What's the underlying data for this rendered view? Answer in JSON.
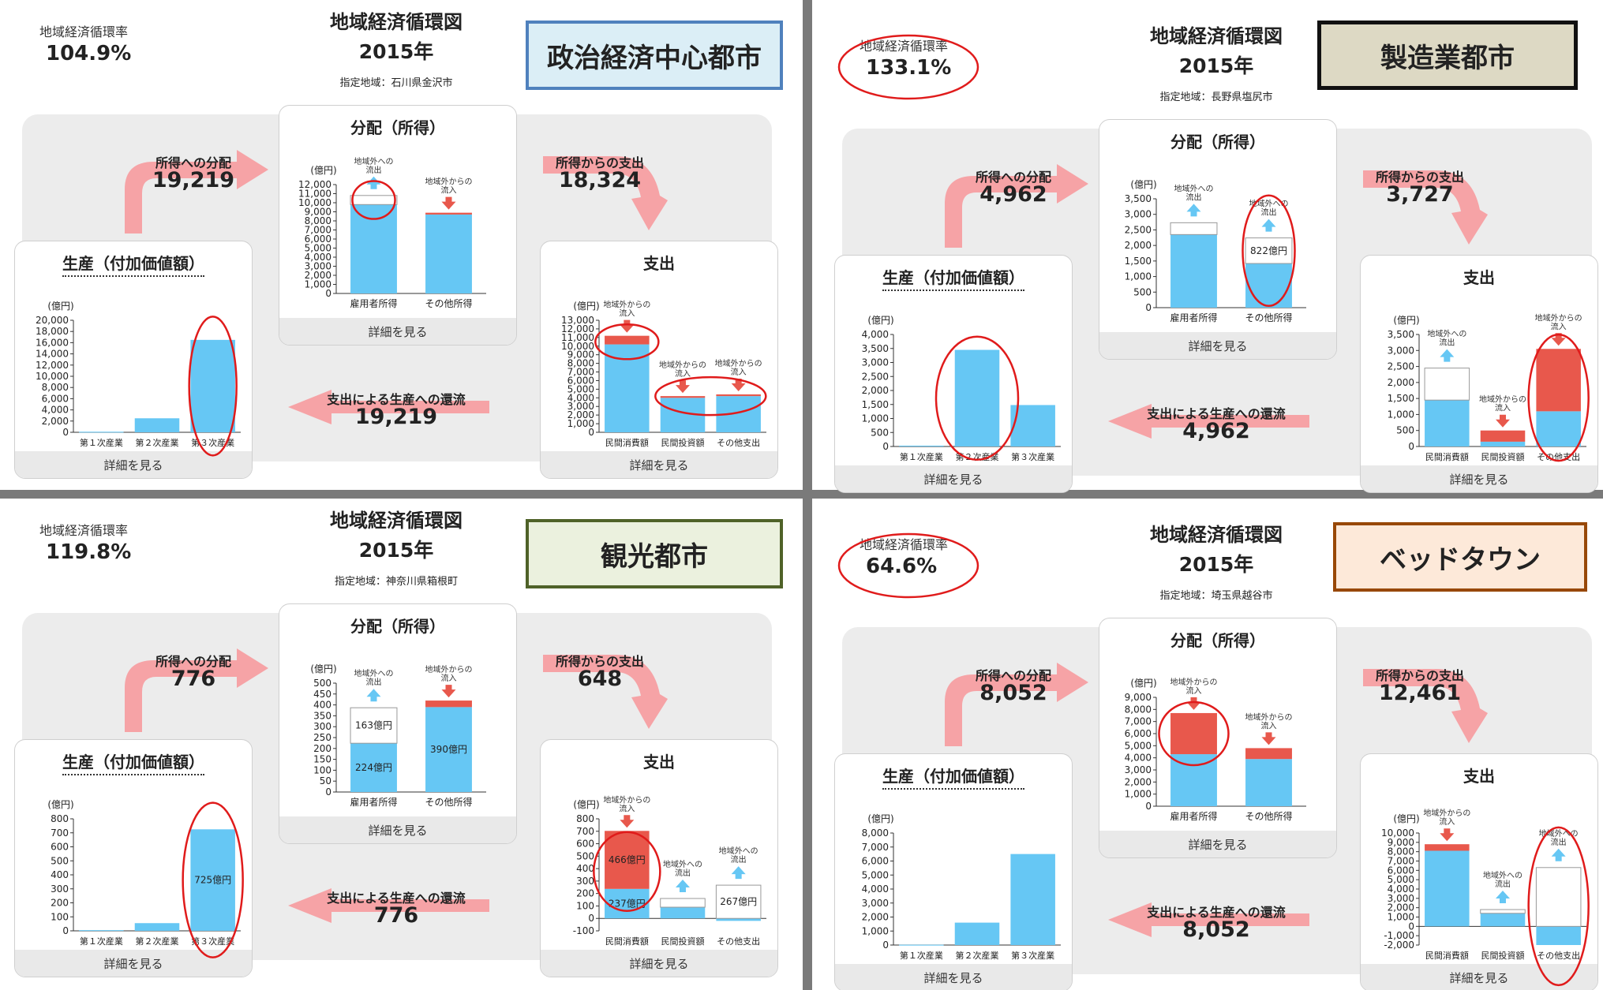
{
  "common": {
    "rate_label": "地域経済循環率",
    "title": "地域経済循環図",
    "year": "2015年",
    "dist_title": "分配（所得）",
    "prod_title": "生産（付加価値額）",
    "exp_title": "支出",
    "detail": "詳細を見る",
    "flow_to_income": "所得への分配",
    "flow_from_income": "所得からの支出",
    "flow_return": "支出による生産への還流",
    "unit": "(億円)",
    "dist_categories": [
      "雇用者所得",
      "その他所得"
    ],
    "prod_categories": [
      "第１次産業",
      "第２次産業",
      "第３次産業"
    ],
    "exp_categories": [
      "民間消費額",
      "民間投資額",
      "その他支出"
    ],
    "note_out": "地域外への流出",
    "note_in": "地域外からの流入",
    "colors": {
      "bar": "#66c7f4",
      "red": "#e8584c",
      "arrow": "#f6a3a6",
      "circle": "#e01b1b",
      "panel": "#ececec"
    }
  },
  "quadrants": [
    {
      "rate": "104.9%",
      "region": "指定地域：石川県金沢市",
      "type": "政治経済中心都市",
      "flows": {
        "to_income": "19,219",
        "from_income": "18,324",
        "return": "19,219"
      },
      "chart_data": [
        {
          "type": "bar",
          "title": "分配（所得）",
          "ylabel": "(億円)",
          "ylim": [
            0,
            12000
          ],
          "yticks": [
            "0",
            "1,000",
            "2,000",
            "3,000",
            "4,000",
            "5,000",
            "6,000",
            "7,000",
            "8,000",
            "9,000",
            "10,000",
            "11,000",
            "12,000"
          ],
          "categories": [
            "雇用者所得",
            "その他所得"
          ],
          "values": [
            9800,
            8700
          ],
          "flow": [
            1000,
            -200
          ],
          "notes": [
            "地域外への流出",
            "地域外からの流入"
          ]
        },
        {
          "type": "bar",
          "title": "生産（付加価値額）",
          "ylabel": "(億円)",
          "ylim": [
            0,
            20000
          ],
          "yticks": [
            "0",
            "2,000",
            "4,000",
            "6,000",
            "8,000",
            "10,000",
            "12,000",
            "14,000",
            "16,000",
            "18,000",
            "20,000"
          ],
          "categories": [
            "第１次産業",
            "第２次産業",
            "第３次産業"
          ],
          "values": [
            100,
            2500,
            16500
          ]
        },
        {
          "type": "bar",
          "title": "支出",
          "ylabel": "(億円)",
          "ylim": [
            0,
            13000
          ],
          "yticks": [
            "0",
            "1,000",
            "2,000",
            "3,000",
            "4,000",
            "5,000",
            "6,000",
            "7,000",
            "8,000",
            "9,000",
            "10,000",
            "11,000",
            "12,000",
            "13,000"
          ],
          "categories": [
            "民間消費額",
            "民間投資額",
            "その他支出"
          ],
          "values": [
            10200,
            4000,
            4200
          ],
          "flow": [
            -1000,
            -200,
            -200
          ],
          "notes": [
            "地域外からの流入",
            "地域外からの流入",
            "地域外からの流入"
          ]
        }
      ]
    },
    {
      "rate": "133.1%",
      "region": "指定地域：長野県塩尻市",
      "type": "製造業都市",
      "flows": {
        "to_income": "4,962",
        "from_income": "3,727",
        "return": "4,962"
      },
      "chart_data": [
        {
          "type": "bar",
          "title": "分配（所得）",
          "ylabel": "(億円)",
          "ylim": [
            0,
            3500
          ],
          "yticks": [
            "0",
            "500",
            "1,000",
            "1,500",
            "2,000",
            "2,500",
            "3,000",
            "3,500"
          ],
          "categories": [
            "雇用者所得",
            "その他所得"
          ],
          "values": [
            2350,
            1420
          ],
          "flow": [
            380,
            822
          ],
          "flow_labels": [
            "",
            "822億円"
          ],
          "notes": [
            "地域外への流出",
            "地域外への流出"
          ]
        },
        {
          "type": "bar",
          "title": "生産（付加価値額）",
          "ylabel": "(億円)",
          "ylim": [
            0,
            4000
          ],
          "yticks": [
            "0",
            "500",
            "1,000",
            "1,500",
            "2,000",
            "2,500",
            "3,000",
            "3,500",
            "4,000"
          ],
          "categories": [
            "第１次産業",
            "第２次産業",
            "第３次産業"
          ],
          "values": [
            30,
            3450,
            1480
          ]
        },
        {
          "type": "bar",
          "title": "支出",
          "ylabel": "(億円)",
          "ylim": [
            0,
            3500
          ],
          "yticks": [
            "0",
            "500",
            "1,000",
            "1,500",
            "2,000",
            "2,500",
            "3,000",
            "3,500"
          ],
          "categories": [
            "民間消費額",
            "民間投資額",
            "その他支出"
          ],
          "values": [
            1450,
            150,
            1100
          ],
          "flow": [
            1000,
            -350,
            -1950
          ],
          "notes": [
            "地域外への流出",
            "地域外からの流入",
            "地域外からの流入"
          ]
        }
      ]
    },
    {
      "rate": "119.8%",
      "region": "指定地域：神奈川県箱根町",
      "type": "観光都市",
      "flows": {
        "to_income": "776",
        "from_income": "648",
        "return": "776"
      },
      "chart_data": [
        {
          "type": "bar",
          "title": "分配（所得）",
          "ylabel": "(億円)",
          "ylim": [
            0,
            500
          ],
          "yticks": [
            "0",
            "50",
            "100",
            "150",
            "200",
            "250",
            "300",
            "350",
            "400",
            "450",
            "500"
          ],
          "categories": [
            "雇用者所得",
            "その他所得"
          ],
          "values": [
            224,
            390
          ],
          "flow": [
            163,
            -30
          ],
          "value_labels": [
            "224億円",
            "390億円"
          ],
          "flow_labels": [
            "163億円",
            ""
          ],
          "notes": [
            "地域外への流出",
            "地域外からの流入"
          ]
        },
        {
          "type": "bar",
          "title": "生産（付加価値額）",
          "ylabel": "(億円)",
          "ylim": [
            0,
            800
          ],
          "yticks": [
            "0",
            "100",
            "200",
            "300",
            "400",
            "500",
            "600",
            "700",
            "800"
          ],
          "categories": [
            "第１次産業",
            "第２次産業",
            "第３次産業"
          ],
          "values": [
            5,
            55,
            725
          ],
          "value_labels": [
            "",
            "",
            "725億円"
          ]
        },
        {
          "type": "bar",
          "title": "支出",
          "ylabel": "(億円)",
          "ylim": [
            -100,
            800
          ],
          "yticks": [
            "-100",
            "0",
            "100",
            "200",
            "300",
            "400",
            "500",
            "600",
            "700",
            "800"
          ],
          "categories": [
            "民間消費額",
            "民間投資額",
            "その他支出"
          ],
          "values": [
            237,
            90,
            -20
          ],
          "flow": [
            -466,
            70,
            267
          ],
          "value_labels": [
            "237億円",
            "",
            ""
          ],
          "flow_labels": [
            "466億円",
            "",
            "267億円"
          ],
          "notes": [
            "地域外からの流入",
            "地域外への流出",
            "地域外への流出"
          ]
        }
      ]
    },
    {
      "rate": "64.6%",
      "region": "指定地域：埼玉県越谷市",
      "type": "ベッドタウン",
      "flows": {
        "to_income": "8,052",
        "from_income": "12,461",
        "return": "8,052"
      },
      "chart_data": [
        {
          "type": "bar",
          "title": "分配（所得）",
          "ylabel": "(億円)",
          "ylim": [
            0,
            9000
          ],
          "yticks": [
            "0",
            "1,000",
            "2,000",
            "3,000",
            "4,000",
            "5,000",
            "6,000",
            "7,000",
            "8,000",
            "9,000"
          ],
          "categories": [
            "雇用者所得",
            "その他所得"
          ],
          "values": [
            4300,
            3900
          ],
          "flow": [
            -3400,
            -900
          ],
          "notes": [
            "地域外からの流入",
            "地域外からの流入"
          ]
        },
        {
          "type": "bar",
          "title": "生産（付加価値額）",
          "ylabel": "(億円)",
          "ylim": [
            0,
            8000
          ],
          "yticks": [
            "0",
            "1,000",
            "2,000",
            "3,000",
            "4,000",
            "5,000",
            "6,000",
            "7,000",
            "8,000"
          ],
          "categories": [
            "第１次産業",
            "第２次産業",
            "第３次産業"
          ],
          "values": [
            20,
            1600,
            6500
          ]
        },
        {
          "type": "bar",
          "title": "支出",
          "ylabel": "(億円)",
          "ylim": [
            -2000,
            10000
          ],
          "yticks": [
            "-2,000",
            "-1,000",
            "0",
            "1,000",
            "2,000",
            "3,000",
            "4,000",
            "5,000",
            "6,000",
            "7,000",
            "8,000",
            "9,000",
            "10,000"
          ],
          "categories": [
            "民間消費額",
            "民間投資額",
            "その他支出"
          ],
          "values": [
            8100,
            1400,
            -2000
          ],
          "flow": [
            -700,
            400,
            6300
          ],
          "notes": [
            "地域外からの流入",
            "地域外への流出",
            "地域外への流出"
          ]
        }
      ]
    }
  ]
}
